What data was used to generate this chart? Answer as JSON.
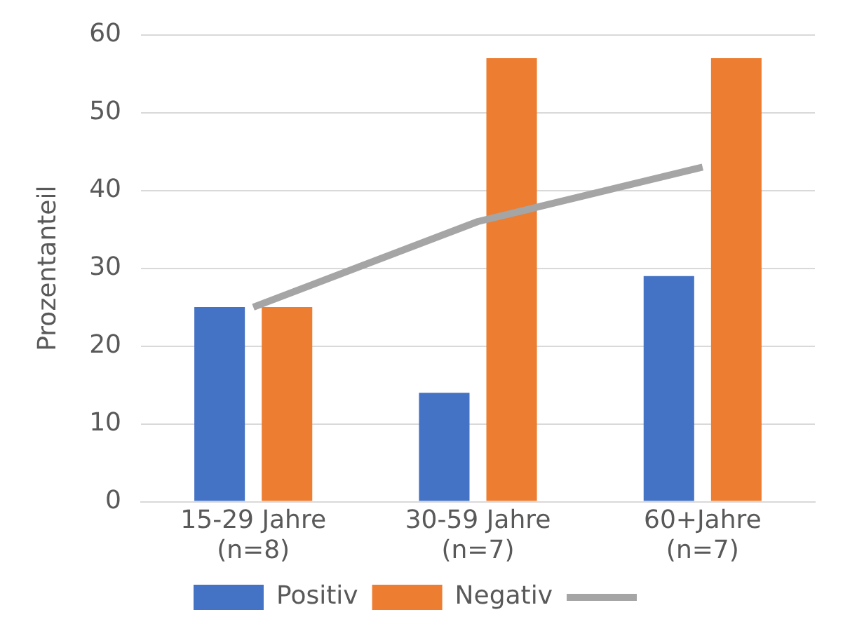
{
  "chart_data": {
    "type": "bar",
    "ylabel": "Prozentanteil",
    "categories": [
      "15-29 Jahre\n(n=8)",
      "30-59 Jahre\n(n=7)",
      "60+Jahre\n(n=7)"
    ],
    "series": [
      {
        "name": "Positiv",
        "color": "#4472c4",
        "values": [
          25,
          14,
          29
        ]
      },
      {
        "name": "Negativ",
        "color": "#ed7d31",
        "values": [
          25,
          57,
          57
        ]
      },
      {
        "type": "line",
        "color": "#a5a5a5",
        "values": [
          25,
          36,
          43
        ]
      }
    ],
    "ylim": [
      0,
      60
    ],
    "yticks": [
      0,
      10,
      20,
      30,
      40,
      50,
      60
    ],
    "grid": "y",
    "legend": "bottom",
    "marker": "none",
    "line_style": "solid"
  }
}
